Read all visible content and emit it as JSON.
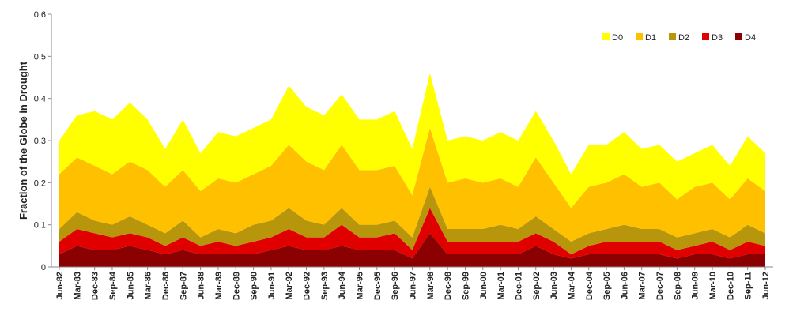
{
  "chart_data": {
    "type": "stacked_area",
    "ylabel": "Fraction of the Globe in Drought",
    "categories": [
      "Jun-82",
      "Mar-83",
      "Dec-83",
      "Sep-84",
      "Jun-85",
      "Mar-86",
      "Dec-86",
      "Sep-87",
      "Jun-88",
      "Mar-89",
      "Dec-89",
      "Sep-90",
      "Jun-91",
      "Mar-92",
      "Dec-92",
      "Sep-93",
      "Jun-94",
      "Mar-95",
      "Dec-95",
      "Sep-96",
      "Jun-97",
      "Mar-98",
      "Dec-98",
      "Sep-99",
      "Jun-00",
      "Mar-01",
      "Dec-01",
      "Sep-02",
      "Jun-03",
      "Mar-04",
      "Dec-04",
      "Sep-05",
      "Jun-06",
      "Mar-07",
      "Dec-07",
      "Sep-08",
      "Jun-09",
      "Mar-10",
      "Dec-10",
      "Sep-11",
      "Jun-12"
    ],
    "series": [
      {
        "name": "D0",
        "color": "#ffff00",
        "values": [
          0.08,
          0.1,
          0.13,
          0.13,
          0.14,
          0.12,
          0.09,
          0.12,
          0.09,
          0.11,
          0.11,
          0.11,
          0.11,
          0.14,
          0.13,
          0.13,
          0.12,
          0.12,
          0.12,
          0.13,
          0.11,
          0.13,
          0.1,
          0.1,
          0.1,
          0.11,
          0.11,
          0.11,
          0.1,
          0.08,
          0.1,
          0.09,
          0.1,
          0.09,
          0.09,
          0.09,
          0.08,
          0.09,
          0.08,
          0.1,
          0.09
        ]
      },
      {
        "name": "D1",
        "color": "#ffc000",
        "values": [
          0.13,
          0.13,
          0.13,
          0.12,
          0.13,
          0.13,
          0.11,
          0.12,
          0.11,
          0.12,
          0.12,
          0.12,
          0.13,
          0.15,
          0.14,
          0.13,
          0.15,
          0.13,
          0.13,
          0.13,
          0.1,
          0.14,
          0.11,
          0.12,
          0.11,
          0.11,
          0.1,
          0.14,
          0.11,
          0.08,
          0.11,
          0.11,
          0.12,
          0.1,
          0.11,
          0.09,
          0.11,
          0.11,
          0.09,
          0.11,
          0.1
        ]
      },
      {
        "name": "D2",
        "color": "#b8960c",
        "values": [
          0.03,
          0.04,
          0.03,
          0.03,
          0.04,
          0.03,
          0.03,
          0.04,
          0.02,
          0.03,
          0.03,
          0.04,
          0.04,
          0.05,
          0.04,
          0.03,
          0.04,
          0.03,
          0.03,
          0.03,
          0.03,
          0.05,
          0.03,
          0.03,
          0.03,
          0.04,
          0.03,
          0.04,
          0.03,
          0.03,
          0.03,
          0.03,
          0.04,
          0.03,
          0.03,
          0.03,
          0.03,
          0.03,
          0.03,
          0.04,
          0.03
        ]
      },
      {
        "name": "D3",
        "color": "#e00000",
        "values": [
          0.03,
          0.04,
          0.04,
          0.03,
          0.03,
          0.03,
          0.02,
          0.03,
          0.02,
          0.03,
          0.02,
          0.03,
          0.03,
          0.04,
          0.03,
          0.03,
          0.05,
          0.03,
          0.03,
          0.04,
          0.02,
          0.06,
          0.03,
          0.03,
          0.03,
          0.03,
          0.03,
          0.03,
          0.03,
          0.01,
          0.02,
          0.03,
          0.03,
          0.03,
          0.03,
          0.02,
          0.02,
          0.03,
          0.02,
          0.03,
          0.02
        ]
      },
      {
        "name": "D4",
        "color": "#8b0000",
        "values": [
          0.03,
          0.05,
          0.04,
          0.04,
          0.05,
          0.04,
          0.03,
          0.04,
          0.03,
          0.03,
          0.03,
          0.03,
          0.04,
          0.05,
          0.04,
          0.04,
          0.05,
          0.04,
          0.04,
          0.04,
          0.02,
          0.08,
          0.03,
          0.03,
          0.03,
          0.03,
          0.03,
          0.05,
          0.03,
          0.02,
          0.03,
          0.03,
          0.03,
          0.03,
          0.03,
          0.02,
          0.03,
          0.03,
          0.02,
          0.03,
          0.03
        ]
      }
    ],
    "ylim": [
      0,
      0.6
    ],
    "yticks": [
      0,
      0.1,
      0.2,
      0.3,
      0.4,
      0.5,
      0.6
    ],
    "grid": false,
    "legend": "upper right"
  }
}
